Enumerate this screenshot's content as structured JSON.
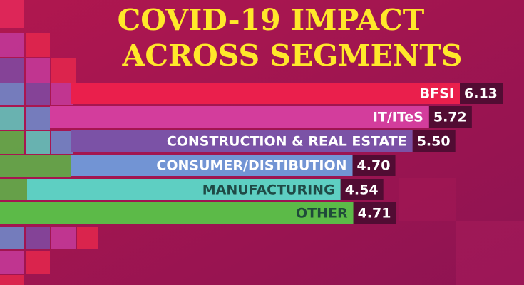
{
  "chart_data": {
    "type": "bar",
    "orientation": "horizontal",
    "title_lines": [
      "COVID-19 IMPACT",
      "ACROSS SEGMENTS"
    ],
    "categories": [
      "BFSI",
      "IT/ITeS",
      "CONSTRUCTION & REAL ESTATE",
      "CONSUMER/DISTIBUTION",
      "MANUFACTURING",
      "OTHER"
    ],
    "values": [
      6.13,
      5.72,
      5.5,
      4.7,
      4.54,
      4.71
    ],
    "value_labels": [
      "6.13",
      "5.72",
      "5.50",
      "4.70",
      "4.54",
      "4.71"
    ],
    "colors": [
      "#ea1f4c",
      "#d33d9c",
      "#7b52a6",
      "#7294d4",
      "#5ecfc2",
      "#5cba48"
    ]
  }
}
